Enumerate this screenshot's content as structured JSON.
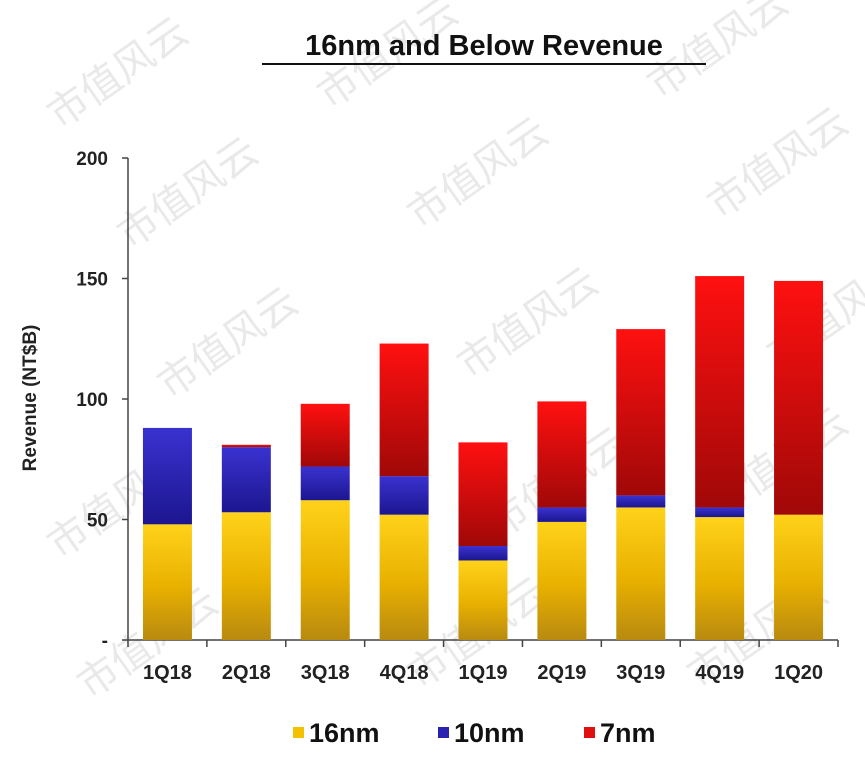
{
  "watermark": "市值风云",
  "chart_data": {
    "type": "bar",
    "stacked": true,
    "title": "16nm and Below Revenue",
    "ylabel": "Revenue (NT$B)",
    "xlabel": "",
    "ylim": [
      0,
      200
    ],
    "yticks": [
      "-",
      "50",
      "100",
      "150",
      "200"
    ],
    "ytick_values": [
      0,
      50,
      100,
      150,
      200
    ],
    "grid": false,
    "legend_position": "bottom",
    "categories": [
      "1Q18",
      "2Q18",
      "3Q18",
      "4Q18",
      "1Q19",
      "2Q19",
      "3Q19",
      "4Q19",
      "1Q20"
    ],
    "series": [
      {
        "name": "16nm",
        "color": "#f2c200",
        "values": [
          48,
          53,
          58,
          52,
          33,
          49,
          55,
          51,
          52
        ]
      },
      {
        "name": "10nm",
        "color": "#2a22b0",
        "values": [
          40,
          27,
          14,
          16,
          6,
          6,
          5,
          4,
          0
        ]
      },
      {
        "name": "7nm",
        "color": "#e01010",
        "values": [
          0,
          1,
          26,
          55,
          43,
          44,
          69,
          96,
          97
        ]
      }
    ]
  }
}
